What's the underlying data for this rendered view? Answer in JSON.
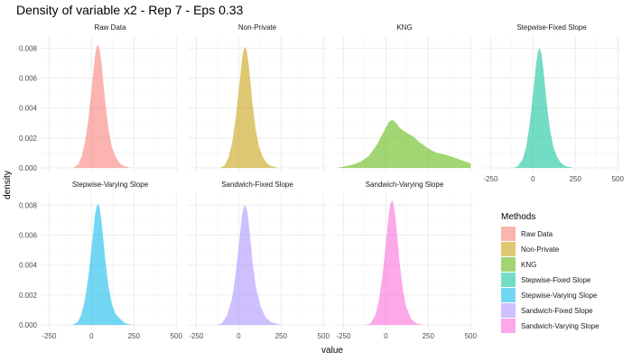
{
  "chart_data": {
    "type": "area",
    "title": "Density of variable x2 - Rep 7 - Eps 0.33",
    "xlabel": "value",
    "ylabel": "density",
    "xlim": [
      -300,
      520
    ],
    "ylim": [
      -0.0003,
      0.0088
    ],
    "x_ticks": [
      -250,
      0,
      250,
      500
    ],
    "y_ticks": [
      0.0,
      0.002,
      0.004,
      0.006,
      0.008
    ],
    "y_tick_labels": [
      "0.000",
      "0.002",
      "0.004",
      "0.006",
      "0.008"
    ],
    "grid": true,
    "legend": {
      "title": "Methods",
      "position": "right"
    },
    "series": [
      {
        "name": "Raw Data",
        "color": "#F8766D",
        "x": [
          -110,
          -80,
          -60,
          -40,
          -20,
          0,
          10,
          20,
          30,
          40,
          50,
          60,
          70,
          80,
          100,
          120,
          140,
          160,
          180,
          200,
          230
        ],
        "y": [
          0,
          0.0002,
          0.0007,
          0.0016,
          0.0031,
          0.0051,
          0.0063,
          0.0074,
          0.0081,
          0.0082,
          0.0078,
          0.0069,
          0.0057,
          0.0045,
          0.0026,
          0.0014,
          0.0008,
          0.0004,
          0.0002,
          0.0001,
          0
        ]
      },
      {
        "name": "Non-Private",
        "color": "#C49A00",
        "x": [
          -110,
          -80,
          -60,
          -40,
          -20,
          0,
          10,
          20,
          30,
          40,
          50,
          60,
          70,
          80,
          100,
          120,
          140,
          160,
          180,
          200,
          230
        ],
        "y": [
          0,
          0.0002,
          0.0007,
          0.0016,
          0.0031,
          0.0051,
          0.0062,
          0.0073,
          0.0079,
          0.0081,
          0.0077,
          0.0068,
          0.0057,
          0.0045,
          0.0026,
          0.0014,
          0.0008,
          0.0004,
          0.0002,
          0.0001,
          0
        ]
      },
      {
        "name": "KNG",
        "color": "#53B400",
        "x": [
          -280,
          -250,
          -200,
          -150,
          -100,
          -50,
          0,
          20,
          40,
          60,
          80,
          100,
          130,
          160,
          200,
          250,
          300,
          350,
          400,
          450,
          500
        ],
        "y": [
          3e-05,
          8e-05,
          0.0002,
          0.0004,
          0.0008,
          0.0016,
          0.0027,
          0.0031,
          0.0032,
          0.003,
          0.0027,
          0.0025,
          0.0023,
          0.0021,
          0.0017,
          0.0013,
          0.001,
          0.0009,
          0.0007,
          0.0005,
          0.0003
        ]
      },
      {
        "name": "Stepwise-Fixed Slope",
        "color": "#00C094",
        "x": [
          -120,
          -90,
          -60,
          -40,
          -20,
          0,
          10,
          20,
          30,
          40,
          50,
          60,
          70,
          80,
          100,
          120,
          140,
          160,
          180,
          200,
          240
        ],
        "y": [
          0,
          0.0001,
          0.0006,
          0.0014,
          0.0029,
          0.0049,
          0.006,
          0.0071,
          0.0078,
          0.008,
          0.0076,
          0.0067,
          0.0056,
          0.0044,
          0.0026,
          0.0014,
          0.0008,
          0.0004,
          0.0002,
          0.0001,
          0
        ]
      },
      {
        "name": "Stepwise-Varying Slope",
        "color": "#00B6EB",
        "x": [
          -110,
          -80,
          -60,
          -40,
          -20,
          0,
          10,
          20,
          30,
          40,
          50,
          60,
          70,
          80,
          100,
          120,
          140,
          160,
          180,
          200,
          240
        ],
        "y": [
          0,
          0.0002,
          0.0007,
          0.0016,
          0.0031,
          0.0051,
          0.0062,
          0.0073,
          0.0079,
          0.0081,
          0.0077,
          0.0068,
          0.0057,
          0.0045,
          0.0026,
          0.0014,
          0.0008,
          0.0005,
          0.0003,
          0.0001,
          0
        ]
      },
      {
        "name": "Sandwich-Fixed Slope",
        "color": "#A58AFF",
        "x": [
          -130,
          -100,
          -70,
          -40,
          -20,
          0,
          10,
          20,
          30,
          40,
          50,
          60,
          70,
          80,
          100,
          130,
          160,
          190,
          220,
          250
        ],
        "y": [
          0,
          0.0001,
          0.0006,
          0.0017,
          0.0032,
          0.0052,
          0.0063,
          0.0073,
          0.0079,
          0.008,
          0.0076,
          0.0067,
          0.0056,
          0.0044,
          0.0026,
          0.0012,
          0.0005,
          0.0002,
          0.0001,
          0
        ]
      },
      {
        "name": "Sandwich-Varying Slope",
        "color": "#FB61D7",
        "x": [
          -120,
          -90,
          -60,
          -40,
          -20,
          0,
          10,
          20,
          30,
          40,
          50,
          60,
          70,
          80,
          100,
          120,
          150,
          180,
          210,
          240
        ],
        "y": [
          0,
          0.0001,
          0.0007,
          0.0017,
          0.0033,
          0.0054,
          0.0066,
          0.0076,
          0.0082,
          0.0083,
          0.0078,
          0.0068,
          0.0056,
          0.0043,
          0.0024,
          0.0012,
          0.0004,
          0.0001,
          3e-05,
          0
        ]
      }
    ]
  }
}
